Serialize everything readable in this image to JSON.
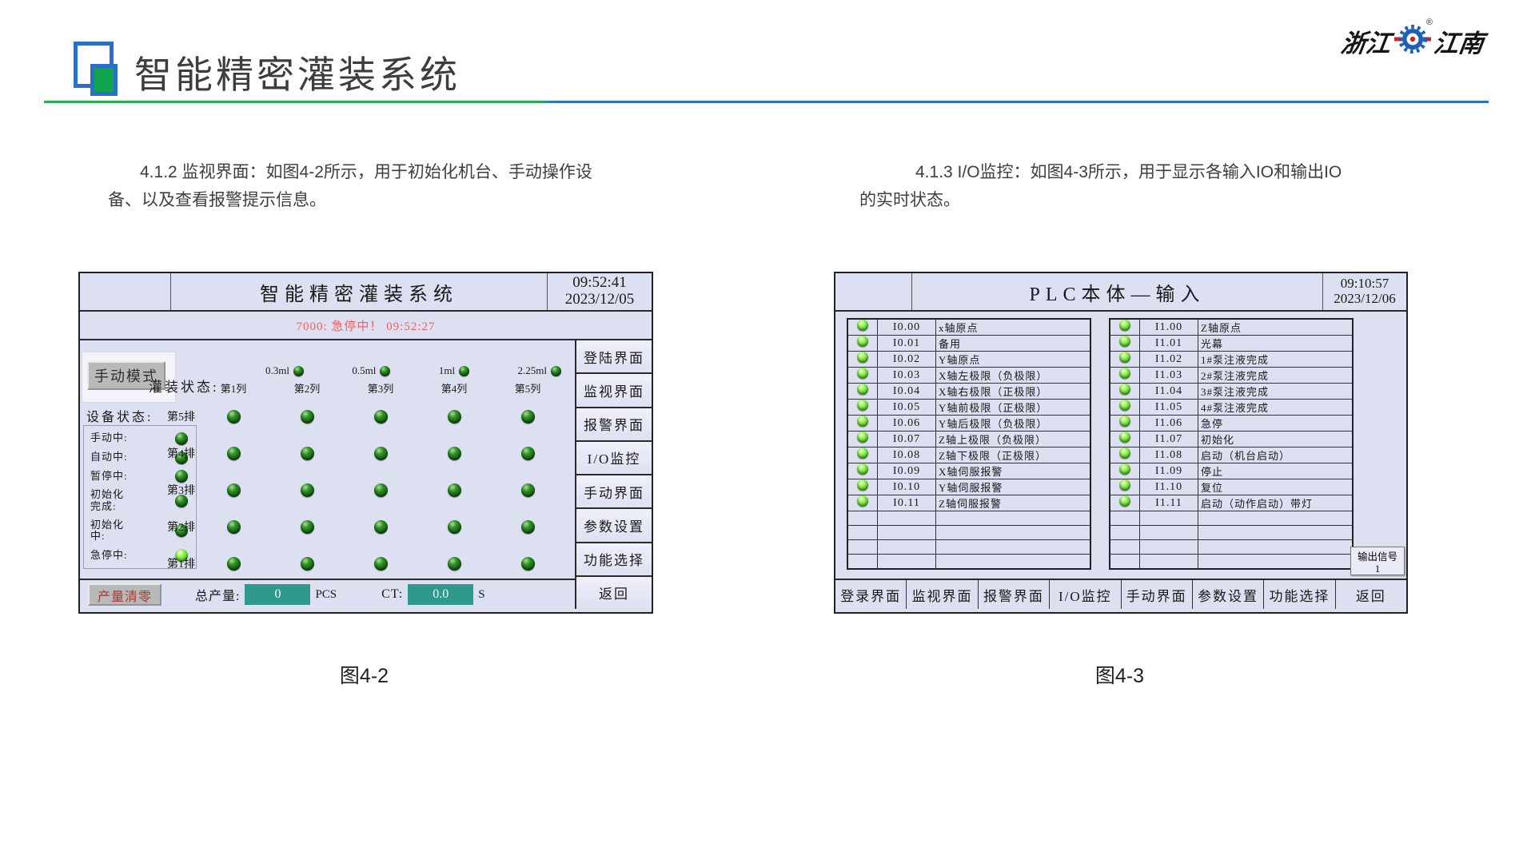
{
  "header": {
    "title": "智能精密灌装系统",
    "brand_left": "浙江",
    "brand_right": "江南",
    "brand_reg": "®"
  },
  "paragraphs": {
    "left": "4.1.2 监视界面：如图4-2所示，用于初始化机台、手动操作设备、以及查看报警提示信息。",
    "right": "4.1.3 I/O监控：如图4-3所示，用于显示各输入IO和输出IO的实时状态。"
  },
  "hmi_monitor": {
    "title": "智能精密灌装系统",
    "time": "09:52:41",
    "date": "2023/12/05",
    "alarm": "7000: 急停中！  09:52:27",
    "mode_button": "手动模式",
    "device_status_label": "设备状态:",
    "device_status": [
      {
        "label": "手动中:",
        "on": false
      },
      {
        "label": "自动中:",
        "on": false
      },
      {
        "label": "暂停中:",
        "on": false
      },
      {
        "label": "初始化\n完成:",
        "on": false
      },
      {
        "label": "初始化\n中:",
        "on": false
      },
      {
        "label": "急停中:",
        "on": true
      }
    ],
    "volume_leds": [
      "0.3ml",
      "0.5ml",
      "1ml",
      "2.25ml"
    ],
    "filling_status_label": "灌装状态:",
    "col_headers": [
      "第1列",
      "第2列",
      "第3列",
      "第4列",
      "第5列"
    ],
    "row_labels": [
      "第5排",
      "第4排",
      "第3排",
      "第2排",
      "第1排"
    ],
    "menu": [
      "登陆界面",
      "监视界面",
      "报警界面",
      "I/O监控",
      "手动界面",
      "参数设置",
      "功能选择",
      "返回"
    ],
    "bottom": {
      "clear_button": "产量清零",
      "total_label": "总产量:",
      "total_value": "0",
      "total_unit": "PCS",
      "ct_label": "CT:",
      "ct_value": "0.0",
      "ct_unit": "S"
    }
  },
  "hmi_io": {
    "title": "PLC本体—输入",
    "time": "09:10:57",
    "date": "2023/12/06",
    "left_rows": [
      {
        "addr": "I0.00",
        "desc": "x轴原点"
      },
      {
        "addr": "I0.01",
        "desc": "备用"
      },
      {
        "addr": "I0.02",
        "desc": "Y轴原点"
      },
      {
        "addr": "I0.03",
        "desc": "X轴左极限（负极限）"
      },
      {
        "addr": "I0.04",
        "desc": "X轴右极限（正极限）"
      },
      {
        "addr": "I0.05",
        "desc": "Y轴前极限（正极限）"
      },
      {
        "addr": "I0.06",
        "desc": "Y轴后极限（负极限）"
      },
      {
        "addr": "I0.07",
        "desc": "Z轴上极限（负极限）"
      },
      {
        "addr": "I0.08",
        "desc": "Z轴下极限（正极限）"
      },
      {
        "addr": "I0.09",
        "desc": "X轴伺服报警"
      },
      {
        "addr": "I0.10",
        "desc": "Y轴伺服报警"
      },
      {
        "addr": "I0.11",
        "desc": "Z轴伺服报警"
      }
    ],
    "right_rows": [
      {
        "addr": "I1.00",
        "desc": "Z轴原点"
      },
      {
        "addr": "I1.01",
        "desc": "光幕"
      },
      {
        "addr": "I1.02",
        "desc": "1#泵注液完成"
      },
      {
        "addr": "I1.03",
        "desc": "2#泵注液完成"
      },
      {
        "addr": "I1.04",
        "desc": "3#泵注液完成"
      },
      {
        "addr": "I1.05",
        "desc": "4#泵注液完成"
      },
      {
        "addr": "I1.06",
        "desc": "急停"
      },
      {
        "addr": "I1.07",
        "desc": "初始化"
      },
      {
        "addr": "I1.08",
        "desc": "启动（机台启动）"
      },
      {
        "addr": "I1.09",
        "desc": "停止"
      },
      {
        "addr": "I1.10",
        "desc": "复位"
      },
      {
        "addr": "I1.11",
        "desc": "启动（动作启动）带灯"
      }
    ],
    "empty_rows": 4,
    "output_button": "输出信号1",
    "nav": [
      "登录界面",
      "监视界面",
      "报警界面",
      "I/O监控",
      "手动界面",
      "参数设置",
      "功能选择",
      "返回"
    ]
  },
  "captions": {
    "left": "图4-2",
    "right": "图4-3"
  },
  "colors": {
    "accent_green": "#10a44c",
    "accent_blue": "#2a70c8",
    "hmi_background": "#dce0f0",
    "teal_field": "#2f9a8c",
    "alarm_red": "#f06060",
    "led_dark_green": "#1c6e14",
    "led_bright_green": "#5ae22e"
  }
}
